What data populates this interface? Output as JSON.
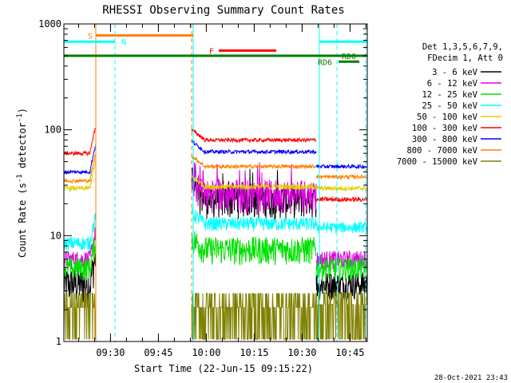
{
  "chart_data": {
    "type": "line",
    "title": "RHESSI Observing Summary Count Rates",
    "xlabel": "Start Time (22-Jun-15 09:15:22)",
    "ylabel": "Count Rate (s",
    "ylabel_sup": "-1",
    "ylabel_suffix": " detector",
    "ylabel_sup2": "-1",
    "ylabel_end": ")",
    "yscale": "log",
    "ylim": [
      1,
      1000
    ],
    "xlim_minutes": [
      0,
      95
    ],
    "x_ticks": [
      {
        "label": "09:30",
        "minutes": 14.6
      },
      {
        "label": "09:45",
        "minutes": 29.6
      },
      {
        "label": "10:00",
        "minutes": 44.6
      },
      {
        "label": "10:15",
        "minutes": 59.6
      },
      {
        "label": "10:30",
        "minutes": 74.6
      },
      {
        "label": "10:45",
        "minutes": 89.6
      }
    ],
    "y_tick_labels": [
      {
        "label": "1",
        "value": 1
      },
      {
        "label": "10",
        "value": 10
      },
      {
        "label": "100",
        "value": 100
      },
      {
        "label": "1000",
        "value": 1000
      }
    ],
    "legend_header": [
      "Det 1,3,5,6,7,9,",
      "FDecim 1, Att 0"
    ],
    "series": [
      {
        "name": "3 - 6 keV",
        "color": "#000000",
        "segments": [
          {
            "x": [
              0,
              10
            ],
            "level": 3.5,
            "noise": 0.4
          },
          {
            "x": [
              40,
              79
            ],
            "level": 22,
            "noise": 0.35,
            "spiky": true
          },
          {
            "x": [
              79,
              95
            ],
            "level": 3.5,
            "noise": 0.3
          }
        ]
      },
      {
        "name": "6 - 12 keV",
        "color": "#e000e0",
        "segments": [
          {
            "x": [
              0,
              10
            ],
            "level": 6,
            "noise": 0.2
          },
          {
            "x": [
              40,
              79
            ],
            "level": 25,
            "noise": 0.35,
            "spiky": true
          },
          {
            "x": [
              79,
              95
            ],
            "level": 6,
            "noise": 0.2
          }
        ]
      },
      {
        "name": "12 - 25 keV",
        "color": "#00e000",
        "segments": [
          {
            "x": [
              0,
              10
            ],
            "level": 5,
            "noise": 0.25
          },
          {
            "x": [
              40,
              79
            ],
            "level": 7.5,
            "noise": 0.3
          },
          {
            "x": [
              79,
              95
            ],
            "level": 5,
            "noise": 0.25
          }
        ]
      },
      {
        "name": "25 - 50 keV",
        "color": "#00ffff",
        "segments": [
          {
            "x": [
              0,
              10
            ],
            "level": 8.5,
            "noise": 0.15
          },
          {
            "x": [
              40,
              79
            ],
            "level": 13,
            "noise": 0.15
          },
          {
            "x": [
              79,
              95
            ],
            "level": 12,
            "noise": 0.12
          }
        ]
      },
      {
        "name": "50 - 100 keV",
        "color": "#e0d000",
        "segments": [
          {
            "x": [
              0,
              10
            ],
            "level": 28,
            "noise": 0.05
          },
          {
            "x": [
              40,
              79
            ],
            "level": 29,
            "noise": 0.06
          },
          {
            "x": [
              79,
              95
            ],
            "level": 28,
            "noise": 0.05
          }
        ]
      },
      {
        "name": "100 - 300 keV",
        "color": "#ff0000",
        "segments": [
          {
            "x": [
              0,
              10
            ],
            "level": 60,
            "noise": 0.04
          },
          {
            "x": [
              40,
              79
            ],
            "level": 80,
            "noise": 0.04
          },
          {
            "x": [
              79,
              95
            ],
            "level": 22,
            "noise": 0.05
          }
        ]
      },
      {
        "name": "300 - 800 keV",
        "color": "#0000ff",
        "segments": [
          {
            "x": [
              0,
              10
            ],
            "level": 40,
            "noise": 0.04
          },
          {
            "x": [
              40,
              79
            ],
            "level": 62,
            "noise": 0.04
          },
          {
            "x": [
              79,
              95
            ],
            "level": 45,
            "noise": 0.04
          }
        ]
      },
      {
        "name": "800 - 7000 keV",
        "color": "#ff8000",
        "segments": [
          {
            "x": [
              0,
              10
            ],
            "level": 33,
            "noise": 0.04
          },
          {
            "x": [
              40,
              79
            ],
            "level": 45,
            "noise": 0.04
          },
          {
            "x": [
              79,
              95
            ],
            "level": 36,
            "noise": 0.04
          }
        ]
      },
      {
        "name": "7000 - 15000 keV",
        "color": "#808000",
        "segments": [
          {
            "x": [
              0,
              10
            ],
            "level": 1.5,
            "noise": 0.3,
            "step": true
          },
          {
            "x": [
              40,
              79
            ],
            "level": 1.5,
            "noise": 0.4,
            "step": true
          },
          {
            "x": [
              79,
              95
            ],
            "level": 1.6,
            "noise": 0.3,
            "step": true
          }
        ]
      }
    ],
    "flag_bars": [
      {
        "label": "S",
        "color": "#ff8000",
        "x": [
          10,
          40.5
        ],
        "y": 780,
        "label_x": 7.5
      },
      {
        "label": "N",
        "color": "#00ffff",
        "x": [
          0,
          16
        ],
        "y": 680,
        "label_x": 18
      },
      {
        "label": "N",
        "color": "#00ffff",
        "x": [
          80,
          95
        ],
        "y": 680,
        "label_x": null
      },
      {
        "label": "F",
        "color": "#ff0000",
        "x": [
          48.5,
          66.5
        ],
        "y": 560,
        "label_x": 45.5
      },
      {
        "label": "RD0",
        "color": "#008000",
        "x": [
          0,
          95
        ],
        "y": 500,
        "label_x": 87
      },
      {
        "label": "RD6",
        "color": "#008000",
        "x": [
          86,
          92.5
        ],
        "y": 440,
        "label_x": 79.5
      }
    ],
    "vertical_markers": [
      {
        "x": 10,
        "color": "#ff8000",
        "style": "solid"
      },
      {
        "x": 16,
        "color": "#00ffff",
        "style": "dashed"
      },
      {
        "x": 40,
        "color": "#ff8000",
        "style": "dashed"
      },
      {
        "x": 40.5,
        "color": "#00ffff",
        "style": "solid"
      },
      {
        "x": 80,
        "color": "#00ffff",
        "style": "solid"
      },
      {
        "x": 85.5,
        "color": "#00ffff",
        "style": "dashed"
      },
      {
        "x": 94.5,
        "color": "#00ffff",
        "style": "dashed"
      }
    ],
    "footer_timestamp": "28-Oct-2021 23:43"
  }
}
